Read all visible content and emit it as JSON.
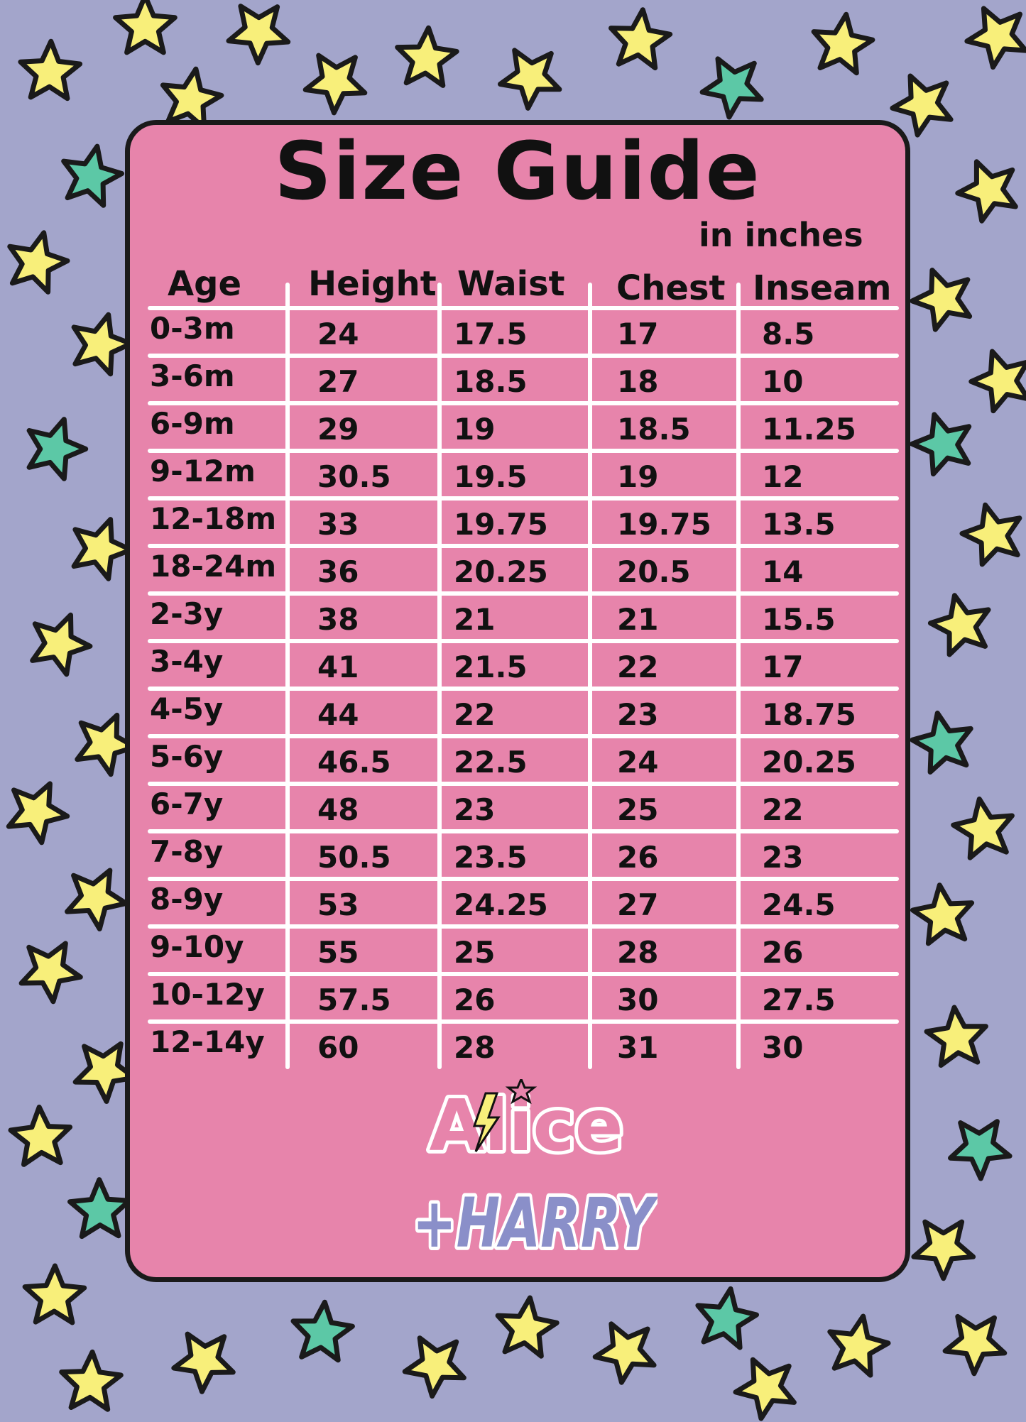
{
  "title": "Size Guide",
  "subtitle": "in inches",
  "colors": {
    "background": "#a3a5cb",
    "card": "#e784ab",
    "star_yellow": "#f8ef7a",
    "star_teal": "#5cc8a6",
    "outline": "#1a1a1a",
    "grid": "#ffffff"
  },
  "table": {
    "headers": [
      "Age",
      "Height",
      "Waist",
      "Chest",
      "Inseam"
    ],
    "rows": [
      [
        "0-3m",
        "24",
        "17.5",
        "17",
        "8.5"
      ],
      [
        "3-6m",
        "27",
        "18.5",
        "18",
        "10"
      ],
      [
        "6-9m",
        "29",
        "19",
        "18.5",
        "11.25"
      ],
      [
        "9-12m",
        "30.5",
        "19.5",
        "19",
        "12"
      ],
      [
        "12-18m",
        "33",
        "19.75",
        "19.75",
        "13.5"
      ],
      [
        "18-24m",
        "36",
        "20.25",
        "20.5",
        "14"
      ],
      [
        "2-3y",
        "38",
        "21",
        "21",
        "15.5"
      ],
      [
        "3-4y",
        "41",
        "21.5",
        "22",
        "17"
      ],
      [
        "4-5y",
        "44",
        "22",
        "23",
        "18.75"
      ],
      [
        "5-6y",
        "46.5",
        "22.5",
        "24",
        "20.25"
      ],
      [
        "6-7y",
        "48",
        "23",
        "25",
        "22"
      ],
      [
        "7-8y",
        "50.5",
        "23.5",
        "26",
        "23"
      ],
      [
        "8-9y",
        "53",
        "24.25",
        "27",
        "24.5"
      ],
      [
        "9-10y",
        "55",
        "25",
        "28",
        "26"
      ],
      [
        "10-12y",
        "57.5",
        "26",
        "30",
        "27.5"
      ],
      [
        "12-14y",
        "60",
        "28",
        "31",
        "30"
      ]
    ]
  },
  "logo": {
    "line1": "Alice",
    "line2": "+HARRY"
  }
}
